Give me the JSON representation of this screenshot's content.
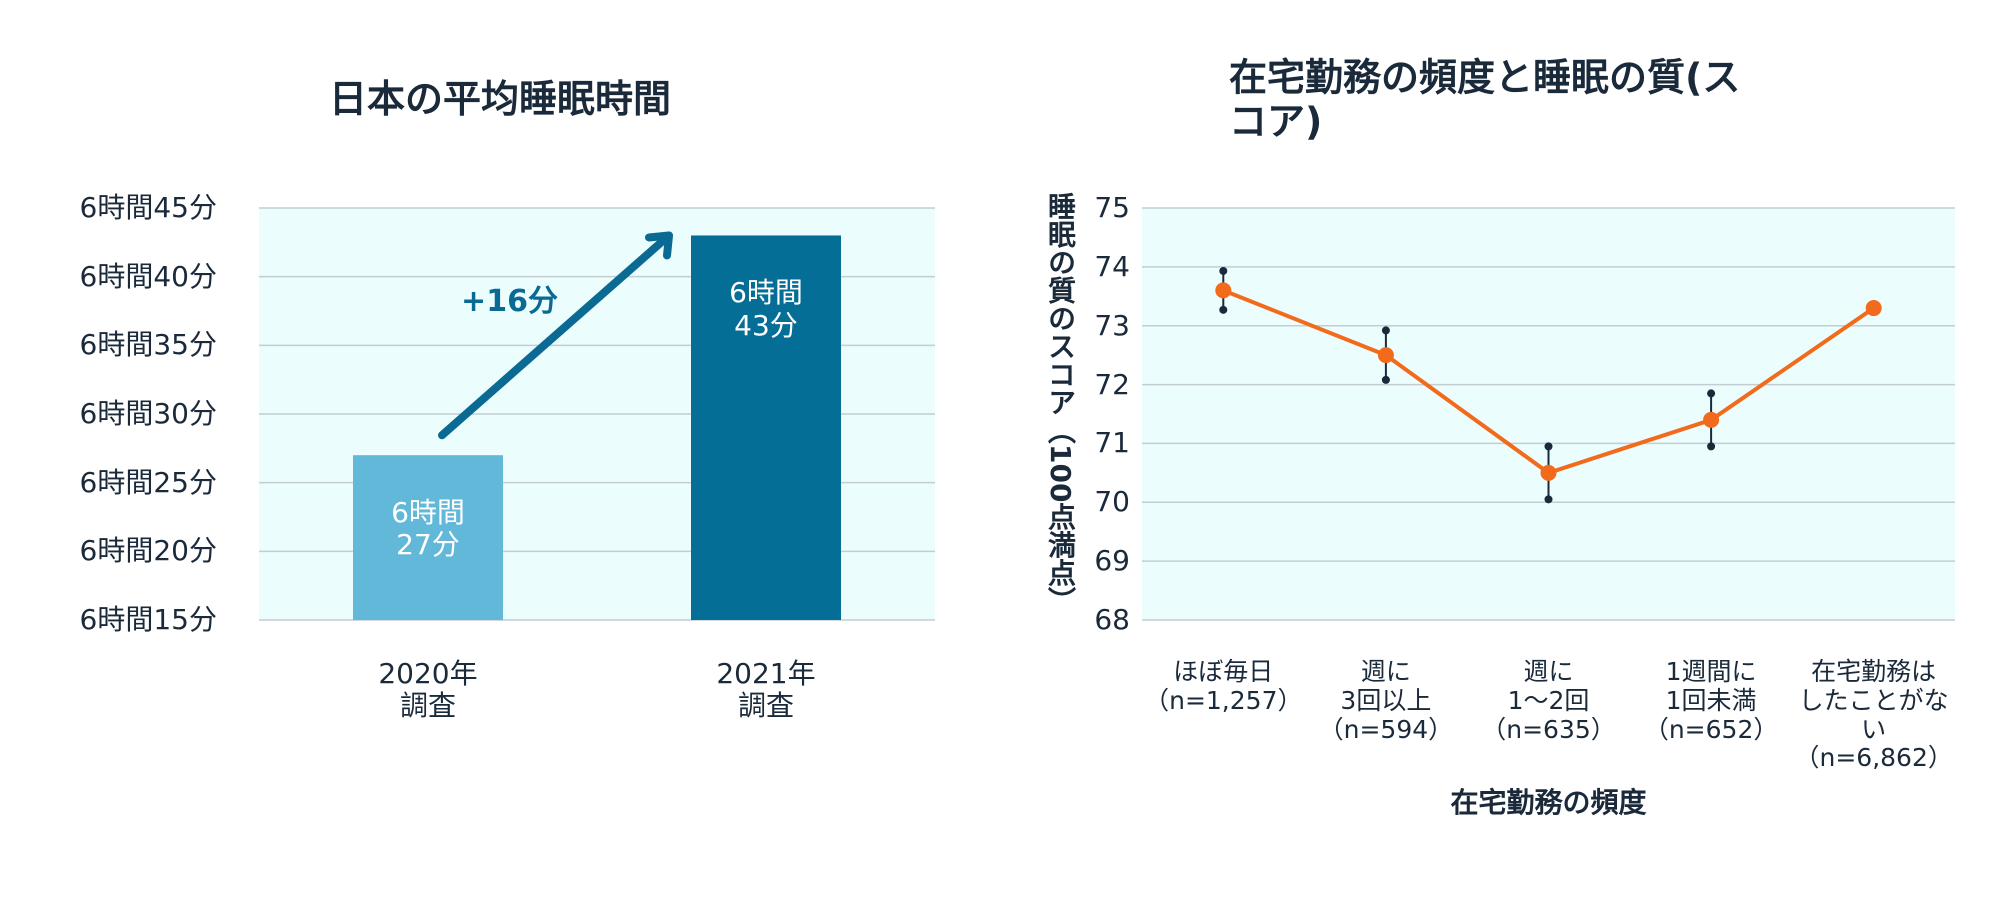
{
  "chart_data": [
    {
      "type": "bar",
      "title": "日本の平均睡眠時間",
      "categories": [
        "2020年\n調査",
        "2021年\n調査"
      ],
      "values": [
        387,
        403
      ],
      "value_labels": [
        "6時間\n27分",
        "6時間\n43分"
      ],
      "colors": [
        "#62b8d9",
        "#046e97"
      ],
      "ylim": [
        375,
        405
      ],
      "yticks": [
        {
          "value": 375,
          "label": "6時間15分"
        },
        {
          "value": 380,
          "label": "6時間20分"
        },
        {
          "value": 385,
          "label": "6時間25分"
        },
        {
          "value": 390,
          "label": "6時間30分"
        },
        {
          "value": 395,
          "label": "6時間35分"
        },
        {
          "value": 400,
          "label": "6時間40分"
        },
        {
          "value": 405,
          "label": "6時間45分"
        }
      ],
      "annotation": "+16分",
      "grid": true
    },
    {
      "type": "line",
      "title": "在宅勤務の頻度と睡眠の質(スコア)",
      "x_label": "在宅勤務の頻度",
      "y_label": "睡眠の質のスコア（100点満点）",
      "categories": [
        "ほぼ毎日\n（n=1,257）",
        "週に\n3回以上\n（n=594）",
        "週に\n1〜2回\n（n=635）",
        "1週間に\n1回未満\n（n=652）",
        "在宅勤務は\nしたことがない\n（n=6,862）"
      ],
      "values": [
        73.6,
        72.5,
        70.5,
        71.4,
        73.3
      ],
      "errors": [
        0.33,
        0.42,
        0.45,
        0.45,
        null
      ],
      "color": "#f26b1d",
      "ylim": [
        68,
        75
      ],
      "yticks": [
        68,
        69,
        70,
        71,
        72,
        73,
        74,
        75
      ],
      "grid": true
    }
  ]
}
